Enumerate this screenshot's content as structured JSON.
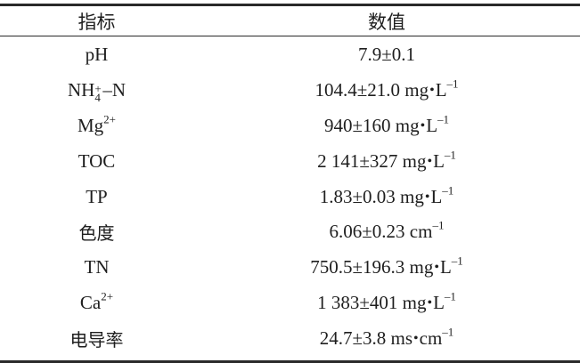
{
  "table": {
    "headers": [
      "指标",
      "数值"
    ],
    "rows": [
      {
        "indicator_html": "pH",
        "value_html": "7.9±0.1"
      },
      {
        "indicator_html": "NH<span class=\"supsub\"><span class=\"s1\">+</span><span class=\"s2\">4</span></span>–N",
        "value_html": "104.4±21.0 mg<span class=\"dot\">•</span>L<span class=\"sup\">–1</span>"
      },
      {
        "indicator_html": "Mg<span class=\"sup\">2+</span>",
        "value_html": "940±160 mg<span class=\"dot\">•</span>L<span class=\"sup\">–1</span>"
      },
      {
        "indicator_html": "TOC",
        "value_html": "2 141±327 mg<span class=\"dot\">•</span>L<span class=\"sup\">–1</span>"
      },
      {
        "indicator_html": "TP",
        "value_html": "1.83±0.03 mg<span class=\"dot\">•</span>L<span class=\"sup\">–1</span>"
      },
      {
        "indicator_html": "<span class=\"cjk\">色度</span>",
        "value_html": "6.06±0.23 cm<span class=\"sup\">–1</span>"
      },
      {
        "indicator_html": "TN",
        "value_html": "750.5±196.3 mg<span class=\"dot\">•</span>L<span class=\"sup\">–1</span>"
      },
      {
        "indicator_html": "Ca<span class=\"sup\">2+</span>",
        "value_html": "1 383±401 mg<span class=\"dot\">•</span>L<span class=\"sup\">–1</span>"
      },
      {
        "indicator_html": "<span class=\"cjk\">电导率</span>",
        "value_html": "24.7±3.8 ms<span class=\"dot\">•</span>cm<span class=\"sup\">–1</span>"
      }
    ]
  }
}
